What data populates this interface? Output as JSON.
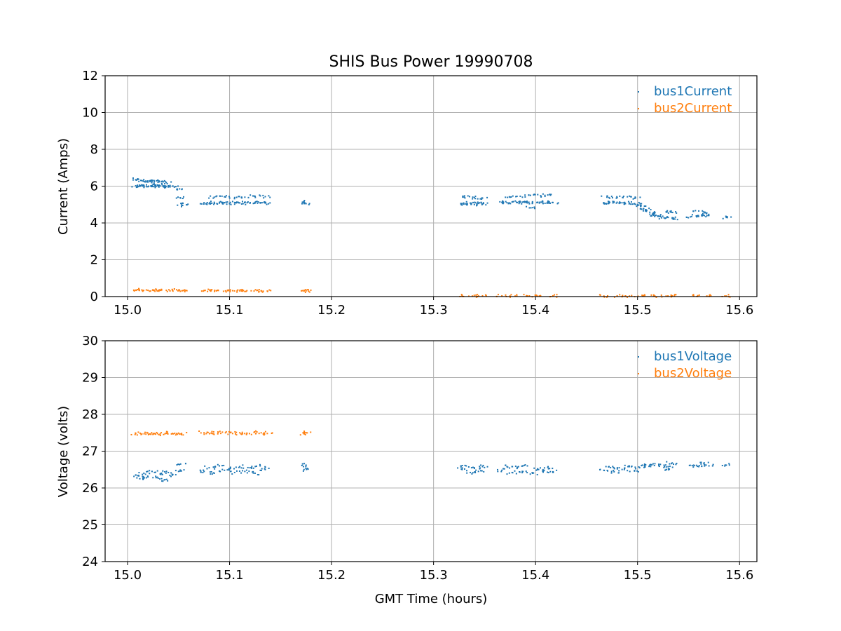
{
  "chart_data": [
    {
      "type": "scatter",
      "title": "SHIS Bus Power 19990708",
      "xlabel": "",
      "ylabel": "Current (Amps)",
      "xlim": [
        14.978,
        15.617
      ],
      "ylim": [
        0,
        12
      ],
      "xticks": [
        "15.0",
        "15.1",
        "15.2",
        "15.3",
        "15.4",
        "15.5",
        "15.6"
      ],
      "yticks": [
        "0",
        "2",
        "4",
        "6",
        "8",
        "10",
        "12"
      ],
      "grid": true,
      "legend_position": "top-right",
      "series": [
        {
          "name": "bus1Current",
          "color": "#1f77b4",
          "points": [
            [
              15.008,
              6.02
            ],
            [
              15.012,
              5.98
            ],
            [
              15.016,
              6.05
            ],
            [
              15.02,
              5.97
            ],
            [
              15.024,
              6.03
            ],
            [
              15.028,
              5.99
            ],
            [
              15.032,
              6.01
            ],
            [
              15.036,
              5.96
            ],
            [
              15.04,
              6.02
            ],
            [
              15.044,
              6.0
            ],
            [
              15.01,
              6.4
            ],
            [
              15.014,
              6.3
            ],
            [
              15.018,
              6.28
            ],
            [
              15.022,
              6.25
            ],
            [
              15.026,
              6.3
            ],
            [
              15.03,
              6.22
            ],
            [
              15.034,
              6.27
            ],
            [
              15.038,
              6.2
            ],
            [
              15.051,
              5.85
            ],
            [
              15.052,
              5.35
            ],
            [
              15.053,
              5.05
            ],
            [
              15.054,
              4.95
            ],
            [
              15.075,
              5.1
            ],
            [
              15.08,
              5.05
            ],
            [
              15.085,
              5.12
            ],
            [
              15.09,
              5.08
            ],
            [
              15.095,
              5.1
            ],
            [
              15.1,
              5.06
            ],
            [
              15.105,
              5.11
            ],
            [
              15.11,
              5.09
            ],
            [
              15.115,
              5.13
            ],
            [
              15.12,
              5.07
            ],
            [
              15.125,
              5.12
            ],
            [
              15.13,
              5.1
            ],
            [
              15.135,
              5.08
            ],
            [
              15.085,
              5.4
            ],
            [
              15.095,
              5.42
            ],
            [
              15.105,
              5.38
            ],
            [
              15.115,
              5.4
            ],
            [
              15.125,
              5.45
            ],
            [
              15.135,
              5.43
            ],
            [
              15.173,
              5.15
            ],
            [
              15.175,
              5.05
            ],
            [
              15.328,
              5.05
            ],
            [
              15.332,
              5.02
            ],
            [
              15.336,
              5.08
            ],
            [
              15.34,
              5.0
            ],
            [
              15.344,
              5.06
            ],
            [
              15.348,
              5.03
            ],
            [
              15.33,
              5.4
            ],
            [
              15.34,
              5.38
            ],
            [
              15.348,
              5.35
            ],
            [
              15.367,
              5.12
            ],
            [
              15.372,
              5.1
            ],
            [
              15.377,
              5.14
            ],
            [
              15.382,
              5.11
            ],
            [
              15.387,
              5.13
            ],
            [
              15.392,
              5.09
            ],
            [
              15.397,
              5.15
            ],
            [
              15.402,
              5.12
            ],
            [
              15.407,
              5.1
            ],
            [
              15.412,
              5.14
            ],
            [
              15.417,
              5.11
            ],
            [
              15.375,
              5.4
            ],
            [
              15.385,
              5.45
            ],
            [
              15.395,
              5.5
            ],
            [
              15.405,
              5.48
            ],
            [
              15.412,
              5.52
            ],
            [
              15.394,
              4.82
            ],
            [
              15.467,
              5.1
            ],
            [
              15.472,
              5.08
            ],
            [
              15.477,
              5.12
            ],
            [
              15.482,
              5.09
            ],
            [
              15.487,
              5.11
            ],
            [
              15.492,
              5.08
            ],
            [
              15.497,
              5.05
            ],
            [
              15.5,
              5.0
            ],
            [
              15.47,
              5.4
            ],
            [
              15.48,
              5.38
            ],
            [
              15.49,
              5.42
            ],
            [
              15.498,
              5.36
            ],
            [
              15.503,
              4.9
            ],
            [
              15.506,
              4.78
            ],
            [
              15.509,
              4.68
            ],
            [
              15.512,
              4.58
            ],
            [
              15.515,
              4.5
            ],
            [
              15.518,
              4.42
            ],
            [
              15.521,
              4.36
            ],
            [
              15.526,
              4.28
            ],
            [
              15.53,
              4.3
            ],
            [
              15.534,
              4.25
            ],
            [
              15.528,
              4.6
            ],
            [
              15.533,
              4.58
            ],
            [
              15.553,
              4.35
            ],
            [
              15.558,
              4.38
            ],
            [
              15.563,
              4.42
            ],
            [
              15.568,
              4.4
            ],
            [
              15.56,
              4.65
            ],
            [
              15.566,
              4.55
            ],
            [
              15.587,
              4.3
            ]
          ]
        },
        {
          "name": "bus2Current",
          "color": "#ff7f0e",
          "points": [
            [
              15.008,
              0.35
            ],
            [
              15.014,
              0.36
            ],
            [
              15.02,
              0.34
            ],
            [
              15.026,
              0.35
            ],
            [
              15.032,
              0.35
            ],
            [
              15.038,
              0.34
            ],
            [
              15.044,
              0.35
            ],
            [
              15.051,
              0.33
            ],
            [
              15.054,
              0.32
            ],
            [
              15.075,
              0.33
            ],
            [
              15.082,
              0.32
            ],
            [
              15.089,
              0.33
            ],
            [
              15.096,
              0.31
            ],
            [
              15.103,
              0.32
            ],
            [
              15.11,
              0.31
            ],
            [
              15.117,
              0.32
            ],
            [
              15.124,
              0.3
            ],
            [
              15.131,
              0.31
            ],
            [
              15.137,
              0.3
            ],
            [
              15.173,
              0.3
            ],
            [
              15.175,
              0.31
            ],
            [
              15.328,
              0.04
            ],
            [
              15.338,
              0.03
            ],
            [
              15.348,
              0.04
            ],
            [
              15.367,
              0.04
            ],
            [
              15.38,
              0.03
            ],
            [
              15.392,
              0.04
            ],
            [
              15.405,
              0.03
            ],
            [
              15.417,
              0.04
            ],
            [
              15.467,
              0.03
            ],
            [
              15.48,
              0.04
            ],
            [
              15.492,
              0.03
            ],
            [
              15.505,
              0.04
            ],
            [
              15.517,
              0.03
            ],
            [
              15.528,
              0.03
            ],
            [
              15.534,
              0.04
            ],
            [
              15.555,
              0.03
            ],
            [
              15.568,
              0.03
            ],
            [
              15.587,
              0.03
            ]
          ]
        }
      ]
    },
    {
      "type": "scatter",
      "title": "",
      "xlabel": "GMT Time (hours)",
      "ylabel": "Voltage (volts)",
      "xlim": [
        14.978,
        15.617
      ],
      "ylim": [
        24,
        30
      ],
      "xticks": [
        "15.0",
        "15.1",
        "15.2",
        "15.3",
        "15.4",
        "15.5",
        "15.6"
      ],
      "yticks": [
        "24",
        "25",
        "26",
        "27",
        "28",
        "29",
        "30"
      ],
      "grid": true,
      "legend_position": "top-right",
      "series": [
        {
          "name": "bus1Voltage",
          "color": "#1f77b4",
          "points": [
            [
              15.008,
              26.35
            ],
            [
              15.012,
              26.25
            ],
            [
              15.016,
              26.4
            ],
            [
              15.02,
              26.3
            ],
            [
              15.024,
              26.45
            ],
            [
              15.028,
              26.28
            ],
            [
              15.032,
              26.38
            ],
            [
              15.036,
              26.22
            ],
            [
              15.04,
              26.42
            ],
            [
              15.044,
              26.35
            ],
            [
              15.05,
              26.45
            ],
            [
              15.052,
              26.65
            ],
            [
              15.075,
              26.45
            ],
            [
              15.08,
              26.55
            ],
            [
              15.085,
              26.4
            ],
            [
              15.09,
              26.6
            ],
            [
              15.095,
              26.48
            ],
            [
              15.1,
              26.52
            ],
            [
              15.105,
              26.42
            ],
            [
              15.11,
              26.58
            ],
            [
              15.115,
              26.45
            ],
            [
              15.12,
              26.55
            ],
            [
              15.125,
              26.4
            ],
            [
              15.13,
              26.6
            ],
            [
              15.135,
              26.5
            ],
            [
              15.173,
              26.5
            ],
            [
              15.175,
              26.62
            ],
            [
              15.328,
              26.5
            ],
            [
              15.332,
              26.6
            ],
            [
              15.336,
              26.42
            ],
            [
              15.34,
              26.55
            ],
            [
              15.344,
              26.45
            ],
            [
              15.348,
              26.58
            ],
            [
              15.367,
              26.48
            ],
            [
              15.372,
              26.58
            ],
            [
              15.377,
              26.42
            ],
            [
              15.382,
              26.55
            ],
            [
              15.387,
              26.45
            ],
            [
              15.392,
              26.6
            ],
            [
              15.397,
              26.4
            ],
            [
              15.402,
              26.52
            ],
            [
              15.407,
              26.46
            ],
            [
              15.412,
              26.56
            ],
            [
              15.417,
              26.44
            ],
            [
              15.467,
              26.48
            ],
            [
              15.472,
              26.58
            ],
            [
              15.477,
              26.44
            ],
            [
              15.482,
              26.55
            ],
            [
              15.487,
              26.5
            ],
            [
              15.492,
              26.58
            ],
            [
              15.497,
              26.46
            ],
            [
              15.502,
              26.55
            ],
            [
              15.507,
              26.6
            ],
            [
              15.512,
              26.62
            ],
            [
              15.517,
              26.66
            ],
            [
              15.526,
              26.62
            ],
            [
              15.53,
              26.58
            ],
            [
              15.534,
              26.68
            ],
            [
              15.528,
              26.5
            ],
            [
              15.555,
              26.62
            ],
            [
              15.56,
              26.58
            ],
            [
              15.565,
              26.66
            ],
            [
              15.57,
              26.6
            ],
            [
              15.587,
              26.62
            ]
          ]
        },
        {
          "name": "bus2Voltage",
          "color": "#ff7f0e",
          "points": [
            [
              15.008,
              27.48
            ],
            [
              15.014,
              27.47
            ],
            [
              15.02,
              27.49
            ],
            [
              15.026,
              27.48
            ],
            [
              15.032,
              27.47
            ],
            [
              15.038,
              27.49
            ],
            [
              15.044,
              27.48
            ],
            [
              15.05,
              27.49
            ],
            [
              15.053,
              27.48
            ],
            [
              15.075,
              27.5
            ],
            [
              15.082,
              27.49
            ],
            [
              15.089,
              27.51
            ],
            [
              15.096,
              27.5
            ],
            [
              15.103,
              27.48
            ],
            [
              15.11,
              27.5
            ],
            [
              15.117,
              27.49
            ],
            [
              15.124,
              27.51
            ],
            [
              15.131,
              27.5
            ],
            [
              15.137,
              27.48
            ],
            [
              15.173,
              27.48
            ],
            [
              15.175,
              27.5
            ]
          ]
        }
      ]
    }
  ]
}
